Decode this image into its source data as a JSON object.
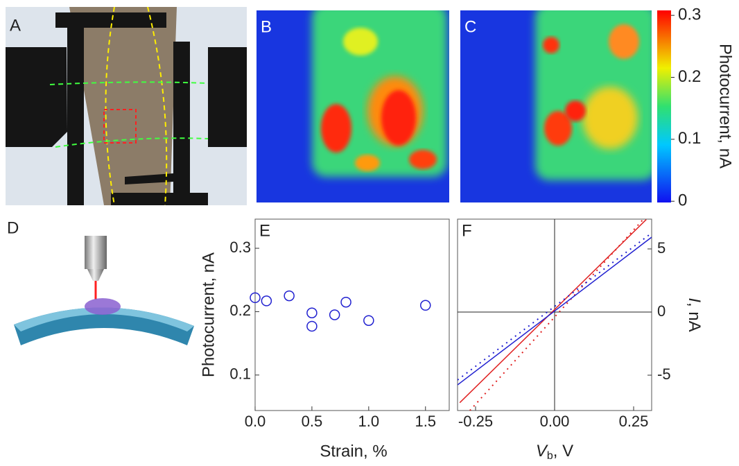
{
  "panel_labels": [
    "A",
    "B",
    "C",
    "D",
    "E",
    "F"
  ],
  "colorbar": {
    "label": "Photocurrent, nA",
    "lim": [
      -0.002,
      0.308
    ],
    "ticks": [
      0,
      0.1,
      0.2,
      0.3
    ]
  },
  "chart_data": [
    {
      "type": "scatter",
      "xlabel": "Strain, %",
      "ylabel": "Photocurrent, nA",
      "x": [
        0,
        0.1,
        0.3,
        0.5,
        0.5,
        0.7,
        0.8,
        1.0,
        1.5
      ],
      "values": [
        0.222,
        0.217,
        0.225,
        0.198,
        0.177,
        0.195,
        0.215,
        0.186,
        0.21
      ],
      "color": "#2020d0",
      "xlim": [
        0,
        1.709
      ],
      "ylim": [
        0.044,
        0.346
      ],
      "xticks": [
        {
          "value": 0,
          "label": "0.0"
        },
        0.5,
        {
          "value": 1,
          "label": "1.0"
        },
        1.5
      ],
      "yticks": [
        0.1,
        0.2,
        0.3
      ]
    },
    {
      "type": "line",
      "xlabel": {
        "main": "V",
        "sub": "b",
        "rest": ", V"
      },
      "ylabel": {
        "main": "I",
        "rest": ", nA"
      },
      "series": [
        {
          "color": "#e02020",
          "style": "solid",
          "x": [
            -0.3,
            0.29
          ],
          "values": [
            -7.18,
            7.33
          ]
        },
        {
          "color": "#e02020",
          "style": "dotted",
          "x": [
            -0.268,
            0.281
          ],
          "values": [
            -7.8,
            7.36
          ]
        },
        {
          "color": "#2020d0",
          "style": "solid",
          "x": [
            -0.307,
            0.307
          ],
          "values": [
            -5.77,
            5.93
          ]
        },
        {
          "color": "#2020d0",
          "style": "dotted",
          "x": [
            -0.307,
            0.307
          ],
          "values": [
            -5.38,
            6.26
          ]
        }
      ],
      "xlim": [
        -0.307,
        0.307
      ],
      "ylim": [
        -7.8,
        7.36
      ],
      "xticks": [
        -0.25,
        {
          "value": 0,
          "label": "0.00"
        },
        0.25
      ],
      "yticks": [
        -5,
        0,
        5
      ]
    }
  ]
}
